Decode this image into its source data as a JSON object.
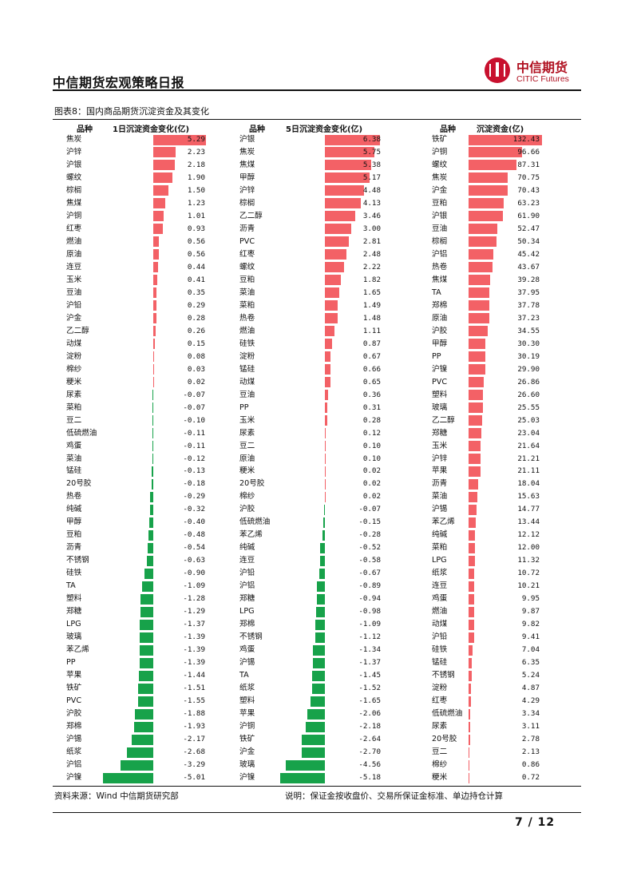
{
  "header": {
    "title": "中信期货宏观策略日报",
    "logo_cn": "中信期货",
    "logo_en": "CITIC Futures"
  },
  "figure": {
    "title": "图表8：国内商品期货沉淀资金及其变化"
  },
  "colors": {
    "positive": "#f36166",
    "negative": "#17a24a"
  },
  "chart_data": [
    {
      "type": "bar",
      "orientation": "horizontal",
      "category_header": "品种",
      "title": "1日沉淀资金变化(亿)",
      "categories": [
        "焦炭",
        "沪锌",
        "沪银",
        "螺纹",
        "棕榈",
        "焦煤",
        "沪铜",
        "红枣",
        "燃油",
        "原油",
        "连豆",
        "玉米",
        "豆油",
        "沪铅",
        "沪金",
        "乙二醇",
        "动煤",
        "淀粉",
        "棉纱",
        "粳米",
        "尿素",
        "菜粕",
        "豆二",
        "低硫燃油",
        "鸡蛋",
        "菜油",
        "锰硅",
        "20号胶",
        "热卷",
        "纯碱",
        "甲醇",
        "豆粕",
        "沥青",
        "不锈钢",
        "硅铁",
        "TA",
        "塑料",
        "郑糖",
        "LPG",
        "玻璃",
        "苯乙烯",
        "PP",
        "苹果",
        "铁矿",
        "PVC",
        "沪胶",
        "郑棉",
        "沪锡",
        "纸浆",
        "沪铝",
        "沪镍"
      ],
      "values": [
        5.29,
        2.23,
        2.18,
        1.9,
        1.5,
        1.23,
        1.01,
        0.93,
        0.56,
        0.56,
        0.44,
        0.41,
        0.35,
        0.29,
        0.28,
        0.26,
        0.15,
        0.08,
        0.03,
        0.02,
        -0.07,
        -0.07,
        -0.1,
        -0.11,
        -0.11,
        -0.12,
        -0.13,
        -0.18,
        -0.29,
        -0.32,
        -0.4,
        -0.48,
        -0.54,
        -0.63,
        -0.9,
        -1.09,
        -1.28,
        -1.29,
        -1.37,
        -1.39,
        -1.39,
        -1.39,
        -1.44,
        -1.51,
        -1.55,
        -1.88,
        -1.93,
        -2.17,
        -2.68,
        -3.29,
        -5.01
      ],
      "labels": [
        "5.29",
        "2.23",
        "2.18",
        "1.90",
        "1.50",
        "1.23",
        "1.01",
        "0.93",
        "0.56",
        "0.56",
        "0.44",
        "0.41",
        "0.35",
        "0.29",
        "0.28",
        "0.26",
        "0.15",
        "0.08",
        "0.03",
        "0.02",
        "-0.07",
        "-0.07",
        "-0.10",
        "-0.11",
        "-0.11",
        "-0.12",
        "-0.13",
        "-0.18",
        "-0.29",
        "-0.32",
        "-0.40",
        "-0.48",
        "-0.54",
        "-0.63",
        "-0.90",
        "-1.09",
        "-1.28",
        "-1.29",
        "-1.37",
        "-1.39",
        "-1.39",
        "-1.39",
        "-1.44",
        "-1.51",
        "-1.55",
        "-1.88",
        "-1.93",
        "-2.17",
        "-2.68",
        "-3.29",
        "-5.01"
      ]
    },
    {
      "type": "bar",
      "orientation": "horizontal",
      "category_header": "品种",
      "title": "5日沉淀资金变化(亿)",
      "categories": [
        "沪银",
        "焦炭",
        "焦煤",
        "甲醇",
        "沪锌",
        "棕榈",
        "乙二醇",
        "沥青",
        "PVC",
        "红枣",
        "螺纹",
        "豆粕",
        "菜油",
        "菜粕",
        "热卷",
        "燃油",
        "硅铁",
        "淀粉",
        "锰硅",
        "动煤",
        "豆油",
        "PP",
        "玉米",
        "尿素",
        "豆二",
        "原油",
        "粳米",
        "20号胶",
        "棉纱",
        "沪胶",
        "低硫燃油",
        "苯乙烯",
        "纯碱",
        "连豆",
        "沪铅",
        "沪铝",
        "郑糖",
        "LPG",
        "郑棉",
        "不锈钢",
        "鸡蛋",
        "沪锡",
        "TA",
        "纸浆",
        "塑料",
        "苹果",
        "沪铜",
        "铁矿",
        "沪金",
        "玻璃",
        "沪镍"
      ],
      "values": [
        6.38,
        5.75,
        5.38,
        5.17,
        4.48,
        4.13,
        3.46,
        3.0,
        2.81,
        2.48,
        2.22,
        1.82,
        1.65,
        1.49,
        1.48,
        1.11,
        0.87,
        0.67,
        0.66,
        0.65,
        0.36,
        0.31,
        0.28,
        0.12,
        0.1,
        0.1,
        0.02,
        0.02,
        0.02,
        -0.07,
        -0.15,
        -0.28,
        -0.52,
        -0.58,
        -0.67,
        -0.89,
        -0.94,
        -0.98,
        -1.09,
        -1.12,
        -1.34,
        -1.37,
        -1.45,
        -1.52,
        -1.65,
        -2.06,
        -2.18,
        -2.64,
        -2.7,
        -4.56,
        -5.18
      ],
      "labels": [
        "6.38",
        "5.75",
        "5.38",
        "5.17",
        "4.48",
        "4.13",
        "3.46",
        "3.00",
        "2.81",
        "2.48",
        "2.22",
        "1.82",
        "1.65",
        "1.49",
        "1.48",
        "1.11",
        "0.87",
        "0.67",
        "0.66",
        "0.65",
        "0.36",
        "0.31",
        "0.28",
        "0.12",
        "0.10",
        "0.10",
        "0.02",
        "0.02",
        "0.02",
        "-0.07",
        "-0.15",
        "-0.28",
        "-0.52",
        "-0.58",
        "-0.67",
        "-0.89",
        "-0.94",
        "-0.98",
        "-1.09",
        "-1.12",
        "-1.34",
        "-1.37",
        "-1.45",
        "-1.52",
        "-1.65",
        "-2.06",
        "-2.18",
        "-2.64",
        "-2.70",
        "-4.56",
        "-5.18"
      ]
    },
    {
      "type": "bar",
      "orientation": "horizontal",
      "category_header": "品种",
      "title": "沉淀资金(亿)",
      "categories": [
        "铁矿",
        "沪铜",
        "螺纹",
        "焦炭",
        "沪金",
        "豆粕",
        "沪银",
        "豆油",
        "棕榈",
        "沪铝",
        "热卷",
        "焦煤",
        "TA",
        "郑棉",
        "原油",
        "沪胶",
        "甲醇",
        "PP",
        "沪镍",
        "PVC",
        "塑料",
        "玻璃",
        "乙二醇",
        "郑糖",
        "玉米",
        "沪锌",
        "苹果",
        "沥青",
        "菜油",
        "沪锡",
        "苯乙烯",
        "纯碱",
        "菜粕",
        "LPG",
        "纸浆",
        "连豆",
        "鸡蛋",
        "燃油",
        "动煤",
        "沪铅",
        "硅铁",
        "锰硅",
        "不锈钢",
        "淀粉",
        "红枣",
        "低硫燃油",
        "尿素",
        "20号胶",
        "豆二",
        "棉纱",
        "粳米"
      ],
      "values": [
        132.43,
        96.66,
        87.31,
        70.75,
        70.43,
        63.23,
        61.9,
        52.47,
        50.34,
        45.42,
        43.67,
        39.28,
        37.95,
        37.78,
        37.23,
        34.55,
        30.3,
        30.19,
        29.9,
        26.86,
        26.6,
        25.55,
        25.03,
        23.04,
        21.64,
        21.21,
        21.11,
        18.04,
        15.63,
        14.77,
        13.44,
        12.12,
        12.0,
        11.32,
        10.72,
        10.21,
        9.95,
        9.87,
        9.82,
        9.41,
        7.04,
        6.35,
        5.24,
        4.87,
        4.29,
        3.34,
        3.11,
        2.78,
        2.13,
        0.86,
        0.72
      ],
      "labels": [
        "132.43",
        "96.66",
        "87.31",
        "70.75",
        "70.43",
        "63.23",
        "61.90",
        "52.47",
        "50.34",
        "45.42",
        "43.67",
        "39.28",
        "37.95",
        "37.78",
        "37.23",
        "34.55",
        "30.30",
        "30.19",
        "29.90",
        "26.86",
        "26.60",
        "25.55",
        "25.03",
        "23.04",
        "21.64",
        "21.21",
        "21.11",
        "18.04",
        "15.63",
        "14.77",
        "13.44",
        "12.12",
        "12.00",
        "11.32",
        "10.72",
        "10.21",
        "9.95",
        "9.87",
        "9.82",
        "9.41",
        "7.04",
        "6.35",
        "5.24",
        "4.87",
        "4.29",
        "3.34",
        "3.11",
        "2.78",
        "2.13",
        "0.86",
        "0.72"
      ]
    }
  ],
  "notes": {
    "source": "资料来源：Wind 中信期货研究部",
    "explain": "说明：保证金按收盘价、交易所保证金标准、单边持仓计算"
  },
  "footer": {
    "page": "7 / 12"
  }
}
